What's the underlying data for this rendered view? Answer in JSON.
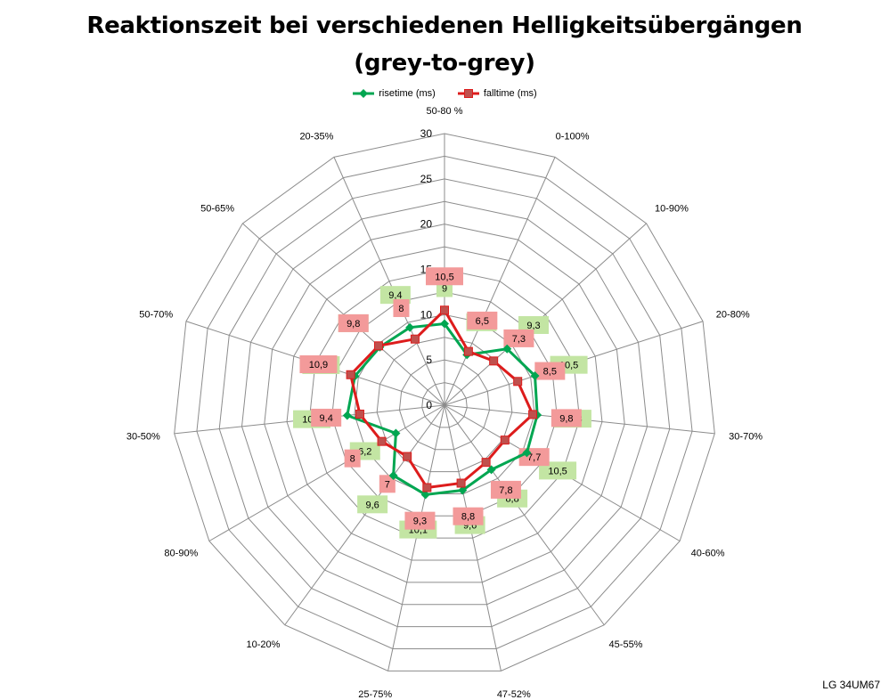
{
  "chart_data": {
    "type": "radar",
    "title": "Reaktionszeit bei verschiedenen Helligkeitsübergängen",
    "subtitle": "(grey-to-grey)",
    "categories": [
      "50-80 %",
      "0-100%",
      "10-90%",
      "20-80%",
      "30-70%",
      "40-60%",
      "45-55%",
      "47-52%",
      "25-75%",
      "10-20%",
      "80-90%",
      "30-50%",
      "50-70%",
      "50-65%",
      "20-35%"
    ],
    "radial_ticks": [
      "0",
      "5",
      "10",
      "15",
      "20",
      "25",
      "30"
    ],
    "rmax": 30,
    "series": [
      {
        "name": "risetime (ms)",
        "color": "#00a651",
        "label_bg": "#c3e5a3",
        "marker": "diamond",
        "values": [
          9,
          6.1,
          9.3,
          10.5,
          10.3,
          10.5,
          8.8,
          9.6,
          10.1,
          9.6,
          6.2,
          10.8,
          10.4,
          9.6,
          9.4
        ],
        "labels": [
          "9",
          "6,1",
          "9,3",
          "10,5",
          "10,3",
          "10,5",
          "8,8",
          "9,6",
          "10,1",
          "9,6",
          "6,2",
          "10,8",
          "10,4",
          "9,6",
          "9,4"
        ]
      },
      {
        "name": "falltime (ms)",
        "color": "#dd1c1c",
        "label_bg": "#f39a9a",
        "marker": "square",
        "values": [
          10.5,
          6.5,
          7.3,
          8.5,
          9.8,
          7.7,
          7.8,
          8.8,
          9.3,
          7,
          8,
          9.4,
          10.9,
          9.8,
          8
        ],
        "labels": [
          "10,5",
          "6,5",
          "7,3",
          "8,5",
          "9,8",
          "7,7",
          "7,8",
          "8,8",
          "9,3",
          "7",
          "8",
          "9,4",
          "10,9",
          "9,8",
          "8"
        ]
      }
    ],
    "legend_position": "top"
  },
  "watermark": "LG 34UM67"
}
